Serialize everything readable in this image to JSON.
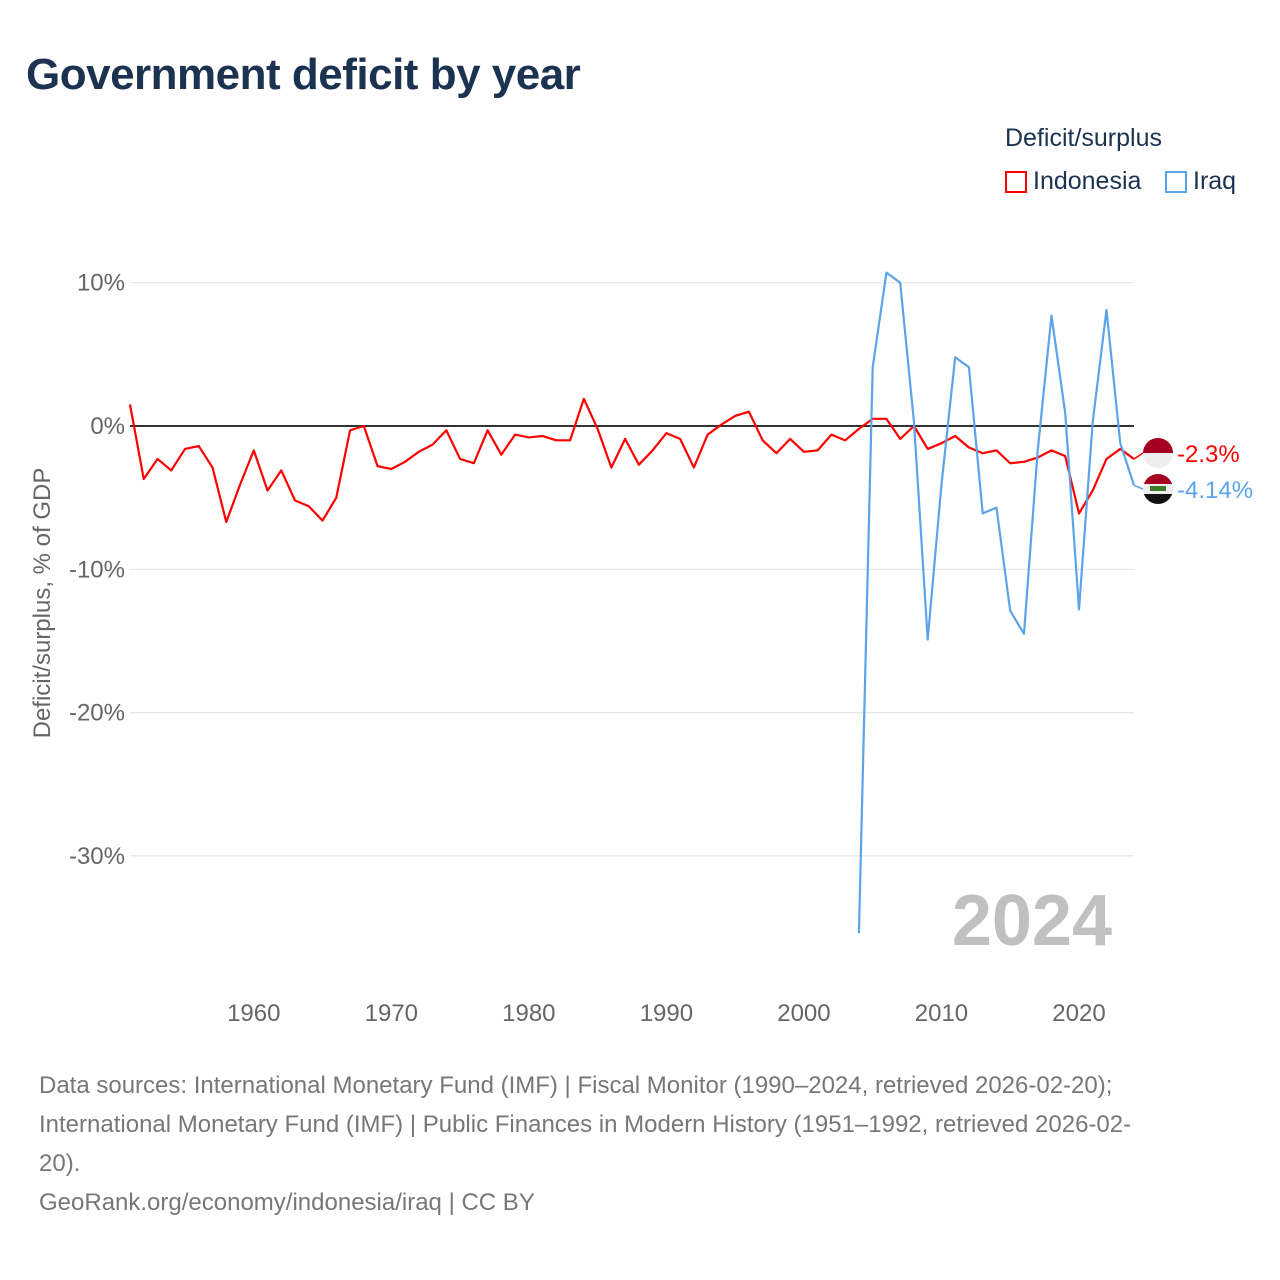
{
  "title": "Government deficit by year",
  "legend": {
    "title": "Deficit/surplus",
    "items": [
      {
        "name": "Indonesia",
        "color": "#ff0000"
      },
      {
        "name": "Iraq",
        "color": "#5ba4ea"
      }
    ]
  },
  "sources": {
    "line1": "Data sources: International Monetary Fund (IMF) | Fiscal Monitor (1990–2024, retrieved 2026-02-20);",
    "line2": "International Monetary Fund (IMF) | Public Finances in Modern History (1951–1992, retrieved 2026-02-",
    "line3": "20).",
    "line4": "GeoRank.org/economy/indonesia/iraq | CC BY"
  },
  "chart_data": {
    "type": "line",
    "title": "Government deficit by year",
    "xlabel": "",
    "ylabel": "Deficit/surplus, % of GDP",
    "xlim": [
      1951,
      2024
    ],
    "ylim": [
      -37,
      13
    ],
    "xticks": [
      1960,
      1970,
      1980,
      1990,
      2000,
      2010,
      2020
    ],
    "yticks": [
      10,
      0,
      -10,
      -20,
      -30
    ],
    "ytick_labels": [
      "10%",
      "0%",
      "-10%",
      "-20%",
      "-30%"
    ],
    "year_watermark": "2024",
    "grid": true,
    "legend_position": "top-right",
    "series": [
      {
        "name": "Indonesia",
        "color": "#ff0000",
        "end_label": "-2.3%",
        "x": [
          1951,
          1952,
          1953,
          1954,
          1955,
          1956,
          1957,
          1958,
          1959,
          1960,
          1961,
          1962,
          1963,
          1964,
          1965,
          1966,
          1967,
          1968,
          1969,
          1970,
          1971,
          1972,
          1973,
          1974,
          1975,
          1976,
          1977,
          1978,
          1979,
          1980,
          1981,
          1982,
          1983,
          1984,
          1985,
          1986,
          1987,
          1988,
          1989,
          1990,
          1991,
          1992,
          1993,
          1994,
          1995,
          1996,
          1997,
          1998,
          1999,
          2000,
          2001,
          2002,
          2003,
          2004,
          2005,
          2006,
          2007,
          2008,
          2009,
          2010,
          2011,
          2012,
          2013,
          2014,
          2015,
          2016,
          2017,
          2018,
          2019,
          2020,
          2021,
          2022,
          2023,
          2024
        ],
        "y": [
          1.5,
          -3.7,
          -2.3,
          -3.1,
          -1.6,
          -1.4,
          -2.9,
          -6.7,
          -4.1,
          -1.7,
          -4.5,
          -3.1,
          -5.2,
          -5.6,
          -6.6,
          -5.0,
          -0.3,
          0.0,
          -2.8,
          -3.0,
          -2.5,
          -1.8,
          -1.3,
          -0.3,
          -2.3,
          -2.6,
          -0.3,
          -2.0,
          -0.6,
          -0.8,
          -0.7,
          -1.0,
          -1.0,
          1.9,
          -0.2,
          -2.9,
          -0.9,
          -2.7,
          -1.7,
          -0.5,
          -0.9,
          -2.9,
          -0.6,
          0.1,
          0.7,
          1.0,
          -1.0,
          -1.9,
          -0.9,
          -1.8,
          -1.7,
          -0.6,
          -1.0,
          -0.2,
          0.5,
          0.5,
          -0.9,
          0.0,
          -1.6,
          -1.2,
          -0.7,
          -1.5,
          -1.9,
          -1.7,
          -2.6,
          -2.5,
          -2.2,
          -1.7,
          -2.1,
          -6.1,
          -4.5,
          -2.3,
          -1.6,
          -2.3
        ]
      },
      {
        "name": "Iraq",
        "color": "#5ba4ea",
        "end_label": "-4.14%",
        "x": [
          2004,
          2005,
          2006,
          2007,
          2008,
          2009,
          2010,
          2011,
          2012,
          2013,
          2014,
          2015,
          2016,
          2017,
          2018,
          2019,
          2020,
          2021,
          2022,
          2023,
          2024
        ],
        "y": [
          -35.4,
          4.1,
          10.7,
          10.0,
          0.3,
          -14.9,
          -4.1,
          4.8,
          4.1,
          -6.1,
          -5.7,
          -12.9,
          -14.5,
          -1.7,
          7.7,
          0.9,
          -12.8,
          0.3,
          8.1,
          -1.2,
          -4.14
        ]
      }
    ]
  }
}
